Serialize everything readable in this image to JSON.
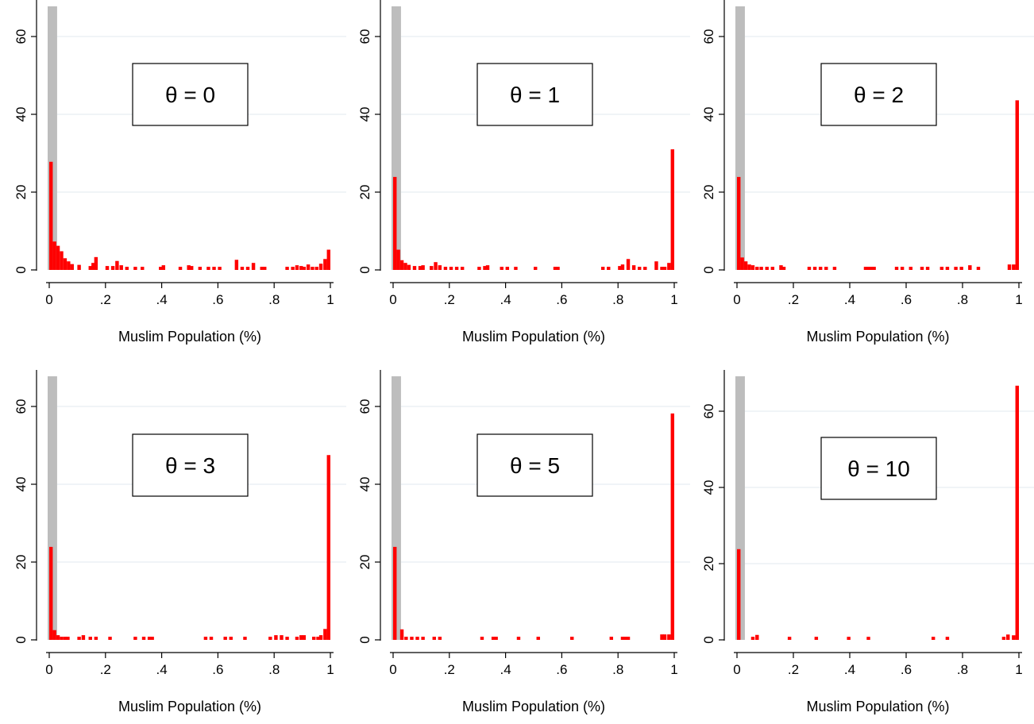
{
  "chart_data": [
    {
      "type": "bar",
      "annotation": "θ = 0",
      "xlabel": "Muslim Population (%)",
      "ylabel": "",
      "xlim": [
        0,
        1
      ],
      "ylim": [
        0,
        68
      ],
      "xticks": [
        "0",
        ".2",
        ".4",
        ".6",
        ".8",
        "1"
      ],
      "yticks": [
        "0",
        "20",
        "40",
        "60"
      ],
      "grid": true,
      "highlight_band": [
        0,
        0.028
      ],
      "bin_width": 0.0125,
      "points": [
        [
          0.0,
          27.8
        ],
        [
          0.0125,
          7.3
        ],
        [
          0.025,
          6.2
        ],
        [
          0.0375,
          4.8
        ],
        [
          0.05,
          3.0
        ],
        [
          0.0625,
          2.2
        ],
        [
          0.075,
          1.5
        ],
        [
          0.1,
          1.3
        ],
        [
          0.14,
          1.0
        ],
        [
          0.15,
          1.8
        ],
        [
          0.16,
          3.3
        ],
        [
          0.2,
          1.0
        ],
        [
          0.22,
          1.0
        ],
        [
          0.235,
          2.3
        ],
        [
          0.25,
          1.2
        ],
        [
          0.27,
          0.8
        ],
        [
          0.3,
          0.8
        ],
        [
          0.325,
          0.8
        ],
        [
          0.39,
          0.8
        ],
        [
          0.4,
          1.2
        ],
        [
          0.46,
          0.8
        ],
        [
          0.49,
          1.2
        ],
        [
          0.5,
          1.0
        ],
        [
          0.53,
          0.8
        ],
        [
          0.56,
          0.8
        ],
        [
          0.58,
          0.8
        ],
        [
          0.6,
          0.8
        ],
        [
          0.66,
          2.6
        ],
        [
          0.68,
          0.8
        ],
        [
          0.7,
          0.8
        ],
        [
          0.72,
          1.8
        ],
        [
          0.75,
          0.8
        ],
        [
          0.76,
          0.8
        ],
        [
          0.84,
          0.8
        ],
        [
          0.86,
          0.8
        ],
        [
          0.875,
          1.2
        ],
        [
          0.89,
          1.0
        ],
        [
          0.9,
          0.8
        ],
        [
          0.915,
          1.4
        ],
        [
          0.93,
          0.8
        ],
        [
          0.945,
          0.8
        ],
        [
          0.96,
          1.6
        ],
        [
          0.975,
          2.8
        ],
        [
          0.9875,
          5.2
        ]
      ]
    },
    {
      "type": "bar",
      "annotation": "θ = 1",
      "xlabel": "Muslim Population (%)",
      "ylabel": "",
      "xlim": [
        0,
        1
      ],
      "ylim": [
        0,
        68
      ],
      "xticks": [
        "0",
        ".2",
        ".4",
        ".6",
        ".8",
        "1"
      ],
      "yticks": [
        "0",
        "20",
        "40",
        "60"
      ],
      "grid": true,
      "highlight_band": [
        0,
        0.028
      ],
      "bin_width": 0.0125,
      "points": [
        [
          0.0,
          23.9
        ],
        [
          0.0125,
          5.2
        ],
        [
          0.025,
          2.5
        ],
        [
          0.0375,
          1.8
        ],
        [
          0.05,
          1.3
        ],
        [
          0.07,
          1.0
        ],
        [
          0.09,
          1.0
        ],
        [
          0.1,
          1.2
        ],
        [
          0.13,
          1.0
        ],
        [
          0.145,
          2.0
        ],
        [
          0.16,
          1.2
        ],
        [
          0.18,
          0.8
        ],
        [
          0.2,
          0.8
        ],
        [
          0.22,
          0.8
        ],
        [
          0.24,
          0.8
        ],
        [
          0.3,
          0.8
        ],
        [
          0.32,
          1.0
        ],
        [
          0.33,
          1.2
        ],
        [
          0.38,
          0.8
        ],
        [
          0.4,
          0.8
        ],
        [
          0.43,
          0.8
        ],
        [
          0.5,
          0.8
        ],
        [
          0.57,
          0.8
        ],
        [
          0.58,
          0.8
        ],
        [
          0.74,
          0.8
        ],
        [
          0.76,
          0.8
        ],
        [
          0.8,
          1.0
        ],
        [
          0.81,
          1.4
        ],
        [
          0.83,
          2.8
        ],
        [
          0.85,
          1.2
        ],
        [
          0.87,
          0.8
        ],
        [
          0.89,
          0.8
        ],
        [
          0.93,
          2.2
        ],
        [
          0.95,
          0.8
        ],
        [
          0.96,
          0.8
        ],
        [
          0.975,
          1.8
        ],
        [
          0.9875,
          31.0
        ]
      ]
    },
    {
      "type": "bar",
      "annotation": "θ = 2",
      "xlabel": "Muslim Population (%)",
      "ylabel": "",
      "xlim": [
        0,
        1
      ],
      "ylim": [
        0,
        68
      ],
      "xticks": [
        "0",
        ".2",
        ".4",
        ".6",
        ".8",
        "1"
      ],
      "yticks": [
        "0",
        "20",
        "40",
        "60"
      ],
      "grid": true,
      "highlight_band": [
        0,
        0.028
      ],
      "bin_width": 0.0125,
      "points": [
        [
          0.0,
          23.9
        ],
        [
          0.0125,
          3.2
        ],
        [
          0.025,
          2.2
        ],
        [
          0.0375,
          1.4
        ],
        [
          0.05,
          1.2
        ],
        [
          0.065,
          0.8
        ],
        [
          0.08,
          0.8
        ],
        [
          0.1,
          0.8
        ],
        [
          0.12,
          0.8
        ],
        [
          0.15,
          1.2
        ],
        [
          0.16,
          0.8
        ],
        [
          0.25,
          0.8
        ],
        [
          0.27,
          0.8
        ],
        [
          0.29,
          0.8
        ],
        [
          0.31,
          0.8
        ],
        [
          0.34,
          0.8
        ],
        [
          0.45,
          0.8
        ],
        [
          0.46,
          0.8
        ],
        [
          0.47,
          0.8
        ],
        [
          0.48,
          0.8
        ],
        [
          0.56,
          0.8
        ],
        [
          0.58,
          0.8
        ],
        [
          0.61,
          0.8
        ],
        [
          0.65,
          0.8
        ],
        [
          0.67,
          0.8
        ],
        [
          0.72,
          0.8
        ],
        [
          0.74,
          0.8
        ],
        [
          0.77,
          0.8
        ],
        [
          0.79,
          0.8
        ],
        [
          0.82,
          1.2
        ],
        [
          0.85,
          0.8
        ],
        [
          0.96,
          1.4
        ],
        [
          0.975,
          1.4
        ],
        [
          0.9875,
          43.6
        ]
      ]
    },
    {
      "type": "bar",
      "annotation": "θ = 3",
      "xlabel": "Muslim Population (%)",
      "ylabel": "",
      "xlim": [
        0,
        1
      ],
      "ylim": [
        0,
        68
      ],
      "xticks": [
        "0",
        ".2",
        ".4",
        ".6",
        ".8",
        "1"
      ],
      "yticks": [
        "0",
        "20",
        "40",
        "60"
      ],
      "grid": true,
      "highlight_band": [
        0,
        0.028
      ],
      "bin_width": 0.0125,
      "points": [
        [
          0.0,
          23.9
        ],
        [
          0.0125,
          2.5
        ],
        [
          0.025,
          1.2
        ],
        [
          0.0375,
          0.8
        ],
        [
          0.05,
          0.8
        ],
        [
          0.06,
          0.8
        ],
        [
          0.1,
          0.8
        ],
        [
          0.115,
          1.2
        ],
        [
          0.14,
          0.8
        ],
        [
          0.16,
          0.8
        ],
        [
          0.21,
          0.8
        ],
        [
          0.3,
          0.8
        ],
        [
          0.33,
          0.8
        ],
        [
          0.35,
          0.8
        ],
        [
          0.36,
          0.8
        ],
        [
          0.55,
          0.8
        ],
        [
          0.57,
          0.8
        ],
        [
          0.62,
          0.8
        ],
        [
          0.64,
          0.8
        ],
        [
          0.69,
          0.8
        ],
        [
          0.78,
          0.8
        ],
        [
          0.8,
          1.2
        ],
        [
          0.82,
          1.2
        ],
        [
          0.84,
          0.8
        ],
        [
          0.875,
          0.8
        ],
        [
          0.89,
          1.2
        ],
        [
          0.9,
          1.2
        ],
        [
          0.935,
          0.8
        ],
        [
          0.95,
          0.8
        ],
        [
          0.96,
          1.2
        ],
        [
          0.975,
          2.8
        ],
        [
          0.9875,
          47.5
        ]
      ]
    },
    {
      "type": "bar",
      "annotation": "θ = 5",
      "xlabel": "Muslim Population (%)",
      "ylabel": "",
      "xlim": [
        0,
        1
      ],
      "ylim": [
        0,
        68
      ],
      "xticks": [
        "0",
        ".2",
        ".4",
        ".6",
        ".8",
        "1"
      ],
      "yticks": [
        "0",
        "20",
        "40",
        "60"
      ],
      "grid": true,
      "highlight_band": [
        0,
        0.028
      ],
      "bin_width": 0.0125,
      "points": [
        [
          0.0,
          23.9
        ],
        [
          0.025,
          2.7
        ],
        [
          0.04,
          0.8
        ],
        [
          0.06,
          0.8
        ],
        [
          0.08,
          0.8
        ],
        [
          0.1,
          0.8
        ],
        [
          0.14,
          0.8
        ],
        [
          0.16,
          0.8
        ],
        [
          0.31,
          0.8
        ],
        [
          0.35,
          0.8
        ],
        [
          0.36,
          0.8
        ],
        [
          0.44,
          0.8
        ],
        [
          0.51,
          0.8
        ],
        [
          0.63,
          0.8
        ],
        [
          0.77,
          0.8
        ],
        [
          0.81,
          0.8
        ],
        [
          0.82,
          0.8
        ],
        [
          0.83,
          0.8
        ],
        [
          0.95,
          1.4
        ],
        [
          0.96,
          1.4
        ],
        [
          0.975,
          1.4
        ],
        [
          0.9875,
          58.2
        ]
      ]
    },
    {
      "type": "bar",
      "annotation": "θ = 10",
      "xlabel": "Muslim Population (%)",
      "ylabel": "",
      "xlim": [
        0,
        1
      ],
      "ylim": [
        0,
        68
      ],
      "xticks": [
        "0",
        ".2",
        ".4",
        ".6",
        ".8",
        "1"
      ],
      "yticks": [
        "0",
        "20",
        "40",
        "60"
      ],
      "grid": true,
      "highlight_band": [
        0,
        0.028
      ],
      "bin_width": 0.0125,
      "points": [
        [
          0.0,
          23.8
        ],
        [
          0.05,
          0.8
        ],
        [
          0.065,
          1.3
        ],
        [
          0.18,
          0.8
        ],
        [
          0.275,
          0.8
        ],
        [
          0.39,
          0.8
        ],
        [
          0.46,
          0.8
        ],
        [
          0.69,
          0.8
        ],
        [
          0.74,
          0.8
        ],
        [
          0.94,
          0.8
        ],
        [
          0.955,
          1.4
        ],
        [
          0.975,
          1.2
        ],
        [
          0.9875,
          66.7
        ]
      ]
    }
  ],
  "colors": {
    "bar": "#ff0000",
    "band": "#bdbdbd",
    "grid": "#e6eef2",
    "axis": "#000000"
  }
}
